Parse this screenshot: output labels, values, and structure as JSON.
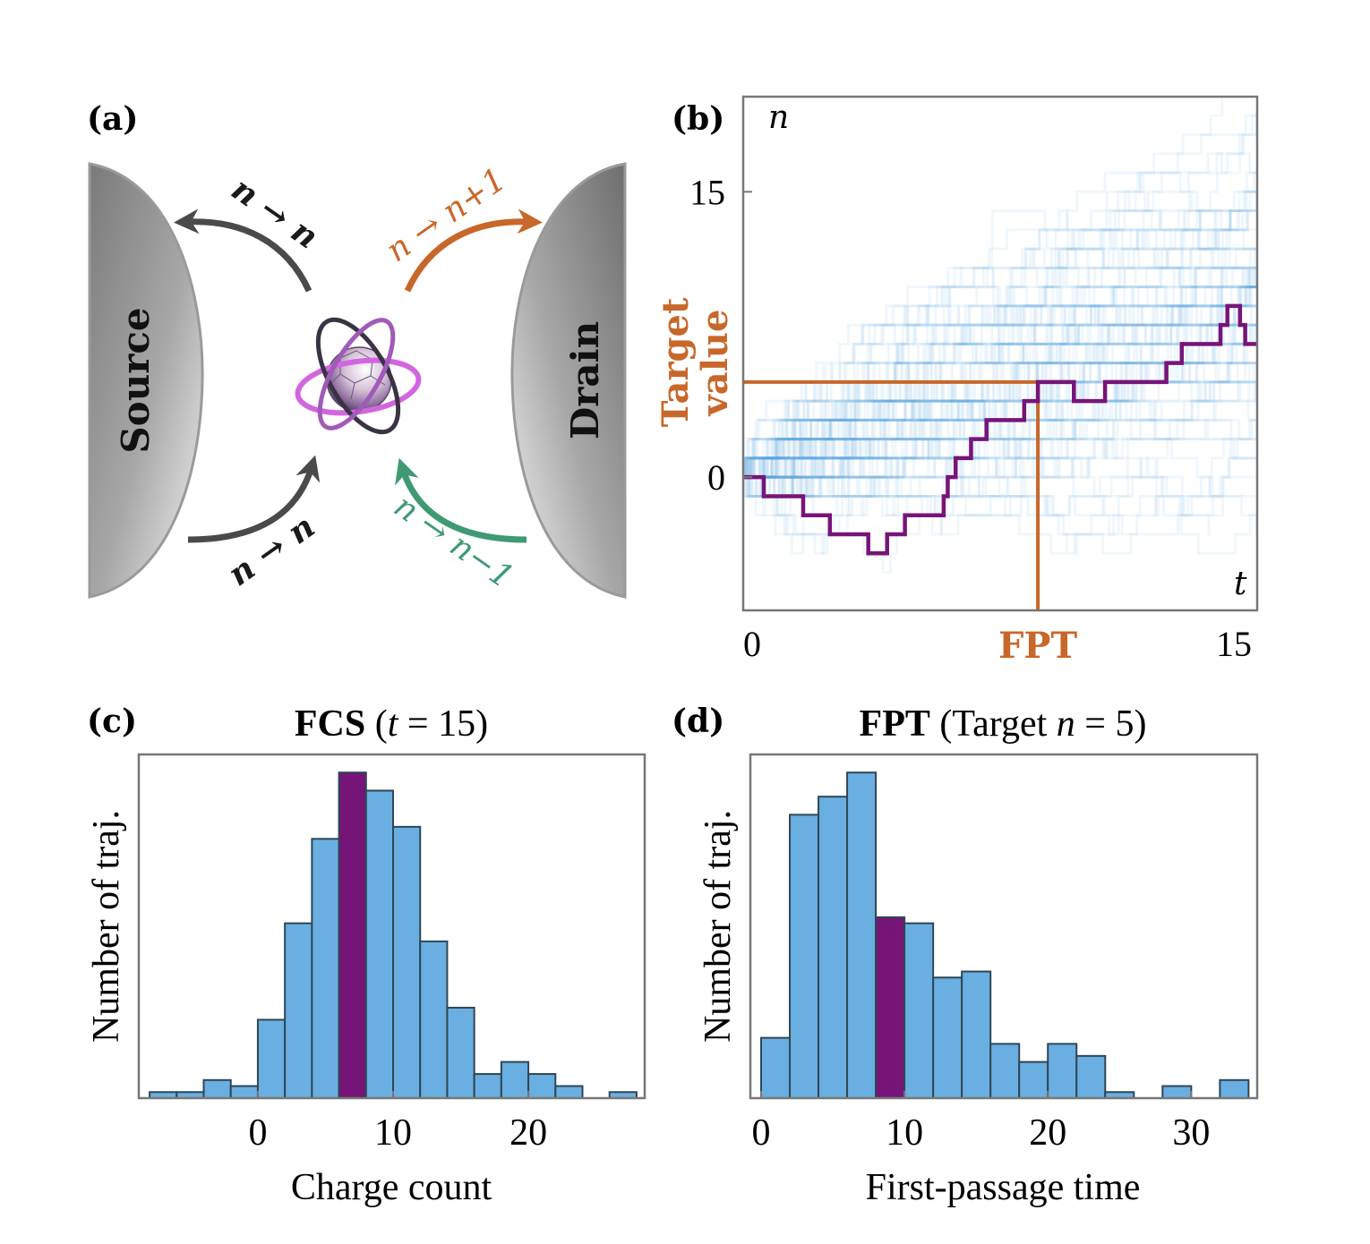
{
  "panel_labels": {
    "a": "(a)",
    "b": "(b)",
    "c": "(c)",
    "d": "(d)"
  },
  "colors": {
    "histogram_bar": "#6aafe1",
    "highlight": "#771478",
    "target": "#c8672a",
    "jump_in_drain": "#c8672a",
    "jump_out_drain": "#3f9a72",
    "no_jump": "#4a4a4a",
    "trajectory_cloud": "#5aa5dc",
    "axis": "#777777"
  },
  "diagram": {
    "source_label": "Source",
    "drain_label": "Drain",
    "transitions": [
      {
        "label": "n → n",
        "color": "#1a1a1a",
        "direction": "dot-to-source"
      },
      {
        "label": "n → n+1",
        "color": "#c8672a",
        "direction": "dot-to-drain"
      },
      {
        "label": "n → n",
        "color": "#1a1a1a",
        "direction": "source-to-dot"
      },
      {
        "label": "n → n−1",
        "color": "#3f9a72",
        "direction": "drain-to-dot"
      }
    ],
    "quantum_dot_icon": "molecule-with-orbit-rings-icon"
  },
  "chart_data": [
    {
      "panel": "b",
      "type": "line",
      "step": true,
      "xlabel": "t",
      "ylabel": "n",
      "xlim": [
        0,
        15
      ],
      "ylim": [
        -7,
        20
      ],
      "x_tick_labels": [
        "0",
        "15"
      ],
      "y_ticks": [
        0,
        15
      ],
      "y_tick_labels": [
        "0",
        "15"
      ],
      "target_label_line1": "Target",
      "target_label_line2": "value",
      "target_value": 5,
      "fpt_label": "FPT",
      "fpt": 8.6,
      "highlighted_trajectory": {
        "t": [
          0,
          0.6,
          1.75,
          2.53,
          3.65,
          4.2,
          4.72,
          5.85,
          5.97,
          6.2,
          6.65,
          7.1,
          8.2,
          8.6,
          9.65,
          10.56,
          12.35,
          12.8,
          13.93,
          14.13,
          14.5,
          14.65,
          15
        ],
        "n": [
          0,
          -1,
          -2,
          -3,
          -4,
          -3,
          -2,
          -1,
          0,
          1,
          2,
          3,
          4,
          5,
          4,
          5,
          6,
          7,
          8,
          9,
          8,
          7,
          7
        ]
      },
      "background_trajectories": "many faint sample trajectories starting at n = 0"
    },
    {
      "panel": "c",
      "type": "bar",
      "title_main": "FCS",
      "title_paren_open": "(",
      "title_var": "t",
      "title_rest": " = 15)",
      "xlabel": "Charge count",
      "ylabel": "Number of traj.",
      "bin_width": 2,
      "bin_starts": [
        -8,
        -6,
        -4,
        -2,
        0,
        2,
        4,
        6,
        8,
        10,
        12,
        14,
        16,
        18,
        20,
        22,
        24,
        26
      ],
      "values": [
        1,
        1,
        3,
        2,
        13,
        29,
        43,
        54,
        51,
        45,
        26,
        15,
        4,
        6,
        4,
        2,
        0,
        1
      ],
      "highlight_bin_start": 6,
      "xlim": [
        -8.8,
        28.6
      ],
      "ylim": [
        0,
        57
      ],
      "x_ticks": [
        0,
        10,
        20
      ],
      "x_tick_labels": [
        "0",
        "10",
        "20"
      ]
    },
    {
      "panel": "d",
      "type": "bar",
      "title_main": "FPT",
      "title_paren_open": "(Target ",
      "title_var": "n",
      "title_rest": " = 5)",
      "xlabel": "First-passage time",
      "ylabel": "Number of traj.",
      "bin_width": 2,
      "bin_starts": [
        0,
        2,
        4,
        6,
        8,
        10,
        12,
        14,
        16,
        18,
        20,
        22,
        24,
        26,
        28,
        30,
        32
      ],
      "values": [
        10,
        47,
        50,
        54,
        30,
        29,
        20,
        21,
        9,
        6,
        9,
        7,
        1,
        0,
        2,
        0,
        3
      ],
      "highlight_bin_start": 8,
      "xlim": [
        -0.75,
        34.6
      ],
      "ylim": [
        0,
        57
      ],
      "x_ticks": [
        0,
        10,
        20,
        30
      ],
      "x_tick_labels": [
        "0",
        "10",
        "20",
        "30"
      ]
    }
  ]
}
